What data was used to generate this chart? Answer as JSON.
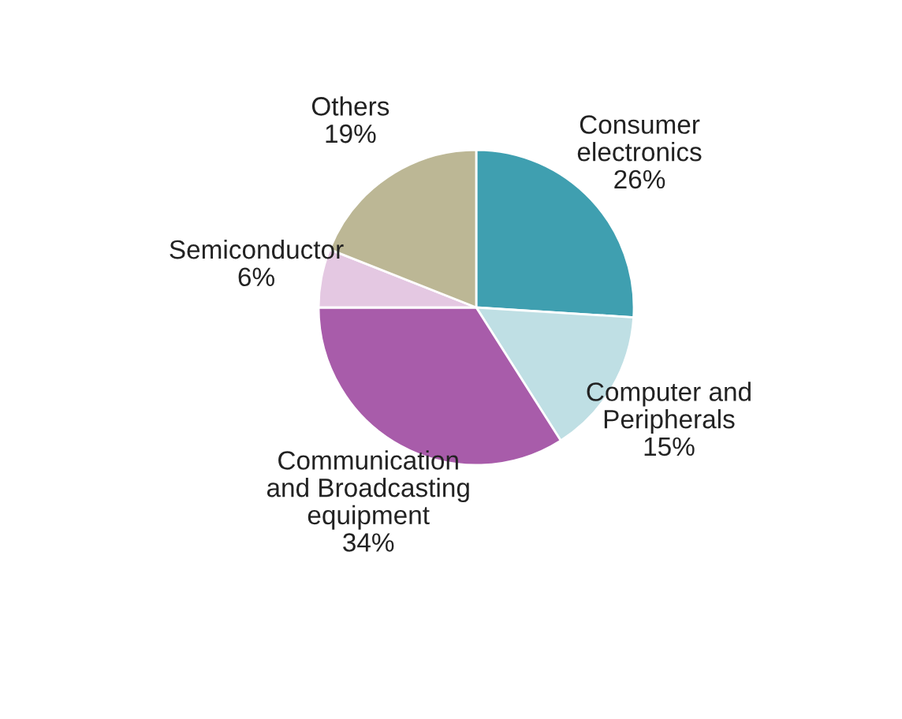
{
  "chart_data": {
    "type": "pie",
    "categories": [
      "Consumer\nelectronics",
      "Computer and\nPeripherals",
      "Communication\nand Broadcasting\nequipment",
      "Semiconductor",
      "Others"
    ],
    "values": [
      26,
      15,
      34,
      6,
      19
    ],
    "colors": [
      "#3f9fb0",
      "#bfdfe4",
      "#a85caa",
      "#e4c8e2",
      "#bcb795"
    ],
    "value_labels": [
      "26%",
      "15%",
      "34%",
      "6%",
      "19%"
    ],
    "legend": false
  }
}
